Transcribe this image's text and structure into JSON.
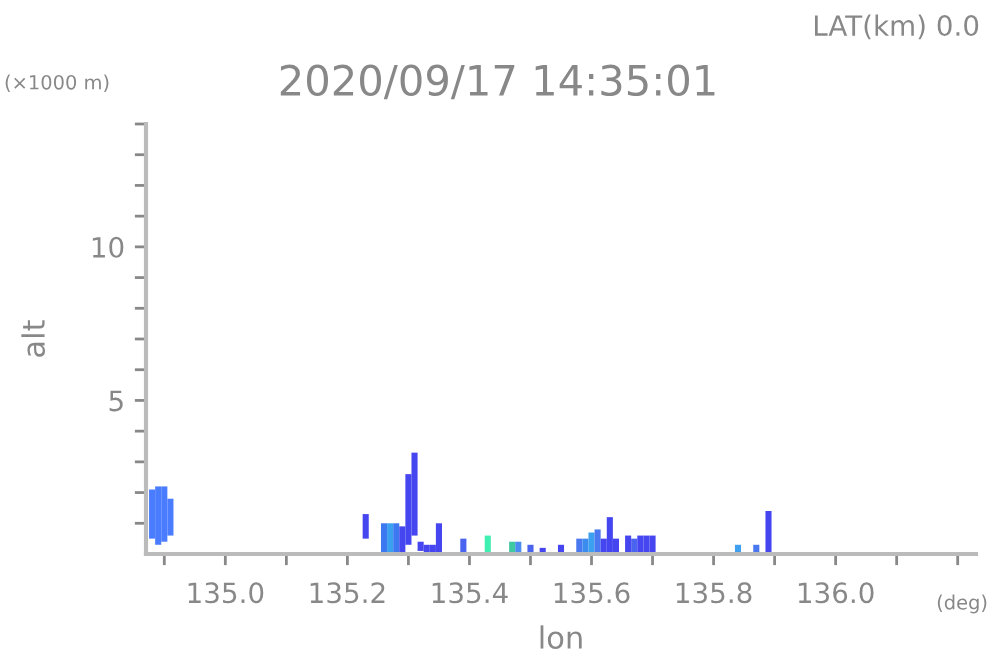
{
  "chart_data": {
    "type": "bar",
    "title": "2020/09/17 14:35:01",
    "xlabel": "lon",
    "ylabel": "alt",
    "annotations": [
      "(×1000 m)",
      "LAT(km) 0.0",
      "(deg)"
    ],
    "x": [
      134.88,
      134.89,
      134.9,
      134.91,
      135.23,
      135.26,
      135.27,
      135.28,
      135.29,
      135.3,
      135.31,
      135.32,
      135.33,
      135.34,
      135.35,
      135.39,
      135.43,
      135.47,
      135.48,
      135.5,
      135.52,
      135.55,
      135.58,
      135.59,
      135.6,
      135.61,
      135.62,
      135.63,
      135.64,
      135.66,
      135.67,
      135.68,
      135.69,
      135.7,
      135.84,
      135.87,
      135.89
    ],
    "base": [
      0.5,
      0.3,
      0.4,
      0.6,
      0.5,
      0,
      0,
      0,
      0,
      0.3,
      0.6,
      0.1,
      0,
      0,
      0,
      0,
      0,
      0,
      0,
      0,
      0,
      0,
      0,
      0,
      0,
      0,
      0,
      0,
      0,
      0,
      0,
      0,
      0,
      0,
      0,
      0,
      0
    ],
    "values": [
      1.6,
      1.9,
      1.8,
      1.2,
      0.8,
      1.0,
      1.0,
      1.0,
      0.9,
      2.3,
      2.7,
      0.3,
      0.3,
      0.3,
      1.0,
      0.5,
      0.6,
      0.4,
      0.4,
      0.3,
      0.2,
      0.3,
      0.5,
      0.5,
      0.7,
      0.8,
      0.5,
      1.2,
      0.5,
      0.6,
      0.5,
      0.6,
      0.6,
      0.6,
      0.3,
      0.3,
      1.4
    ],
    "colors": [
      "#4a7cff",
      "#4a7cff",
      "#4a7cff",
      "#4a7cff",
      "#4646f0",
      "#3c78f0",
      "#3ca0f0",
      "#3c78f0",
      "#4646f0",
      "#4646f0",
      "#4646f0",
      "#4646f0",
      "#4646f0",
      "#4646f0",
      "#4646f0",
      "#4a64f0",
      "#40f0b0",
      "#40c8a0",
      "#4a8cf0",
      "#4a64f0",
      "#4646f0",
      "#4646f0",
      "#4a78f0",
      "#3c8cf0",
      "#3ca0f0",
      "#4a78f0",
      "#4646f0",
      "#4646f0",
      "#4646f0",
      "#4646f0",
      "#4a64f0",
      "#4646f0",
      "#4646f0",
      "#4646f0",
      "#40a0f0",
      "#4a78f0",
      "#4646f0"
    ],
    "xlim": [
      134.87,
      136.23
    ],
    "ylim": [
      0,
      14
    ],
    "xticks": [
      {
        "value": 134.9,
        "label": null
      },
      {
        "value": 135.0,
        "label": "135.0"
      },
      {
        "value": 135.1,
        "label": null
      },
      {
        "value": 135.2,
        "label": "135.2"
      },
      {
        "value": 135.3,
        "label": null
      },
      {
        "value": 135.4,
        "label": "135.4"
      },
      {
        "value": 135.5,
        "label": null
      },
      {
        "value": 135.6,
        "label": "135.6"
      },
      {
        "value": 135.7,
        "label": null
      },
      {
        "value": 135.8,
        "label": "135.8"
      },
      {
        "value": 135.9,
        "label": null
      },
      {
        "value": 136.0,
        "label": "136.0"
      },
      {
        "value": 136.1,
        "label": null
      },
      {
        "value": 136.2,
        "label": null
      }
    ],
    "yticks": [
      {
        "value": 1,
        "label": null
      },
      {
        "value": 2,
        "label": null
      },
      {
        "value": 3,
        "label": null
      },
      {
        "value": 4,
        "label": null
      },
      5,
      {
        "value": 6,
        "label": null
      },
      {
        "value": 7,
        "label": null
      },
      {
        "value": 8,
        "label": null
      },
      {
        "value": 9,
        "label": null
      },
      10,
      {
        "value": 11,
        "label": null
      },
      {
        "value": 12,
        "label": null
      },
      {
        "value": 13,
        "label": null
      },
      {
        "value": 14,
        "label": null
      }
    ],
    "grid": false,
    "legend": false
  }
}
